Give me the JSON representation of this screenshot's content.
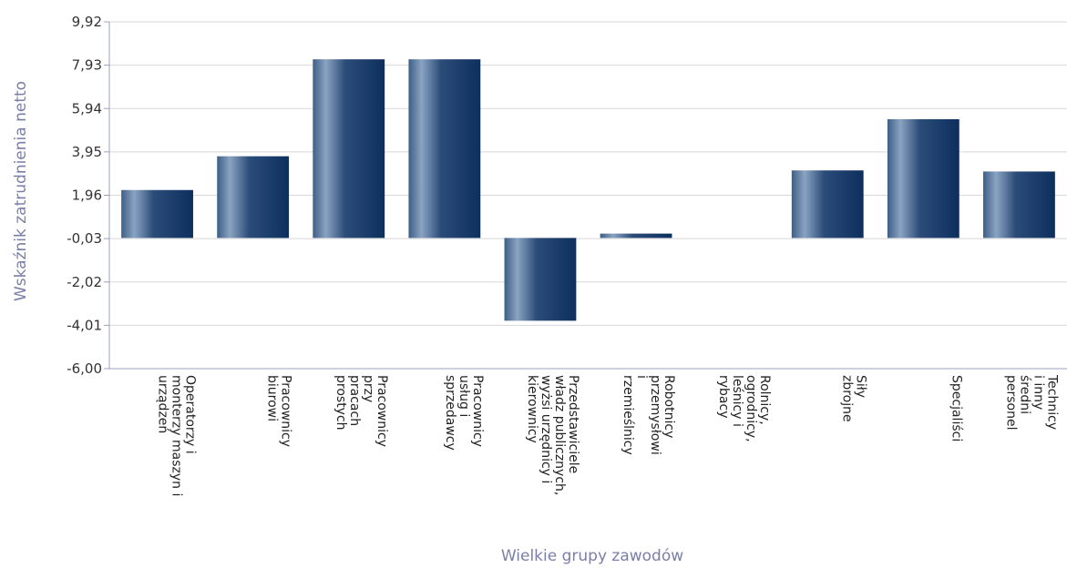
{
  "chart_data": {
    "type": "bar",
    "title": "",
    "xlabel": "Wielkie grupy zawodów",
    "ylabel": "Wskaźnik zatrudnienia netto",
    "ylim": [
      -6.0,
      9.92
    ],
    "yticks": [
      "9,92",
      "7,93",
      "5,94",
      "3,95",
      "1,96",
      "-0,03",
      "-2,02",
      "-4,01",
      "-6,00"
    ],
    "ytick_values": [
      9.92,
      7.93,
      5.94,
      3.95,
      1.96,
      -0.03,
      -2.02,
      -4.01,
      -6.0
    ],
    "grid": true,
    "legend": "none",
    "categories": [
      [
        "Operatorzy i",
        "monterzy maszyn i",
        "urządzeń"
      ],
      [
        "Pracownicy",
        "biurowi"
      ],
      [
        "Pracownicy",
        "przy",
        "pracach",
        "prostych"
      ],
      [
        "Pracownicy",
        "usług i",
        "sprzedawcy"
      ],
      [
        "Przedstawiciele",
        "władz publicznych,",
        "wyżsi urzędnicy i",
        "kierownicy"
      ],
      [
        "Robotnicy",
        "przemysłowi",
        "i",
        "rzemieślnicy"
      ],
      [
        "Rolnicy,",
        "ogrodnicy,",
        "leśnicy i",
        "rybacy"
      ],
      [
        "Siły",
        "zbrojne"
      ],
      [
        "Specjaliści"
      ],
      [
        "Technicy",
        "i inny",
        "średni",
        "personel"
      ]
    ],
    "values": [
      2.2,
      3.75,
      8.2,
      8.2,
      -3.8,
      0.2,
      0.0,
      3.1,
      5.45,
      3.05
    ],
    "colors": {
      "bar_dark": "#0d2f5e",
      "bar_light": "#8aa3c2",
      "grid": "#d8d8d8",
      "axis": "#9aa0c0"
    }
  }
}
